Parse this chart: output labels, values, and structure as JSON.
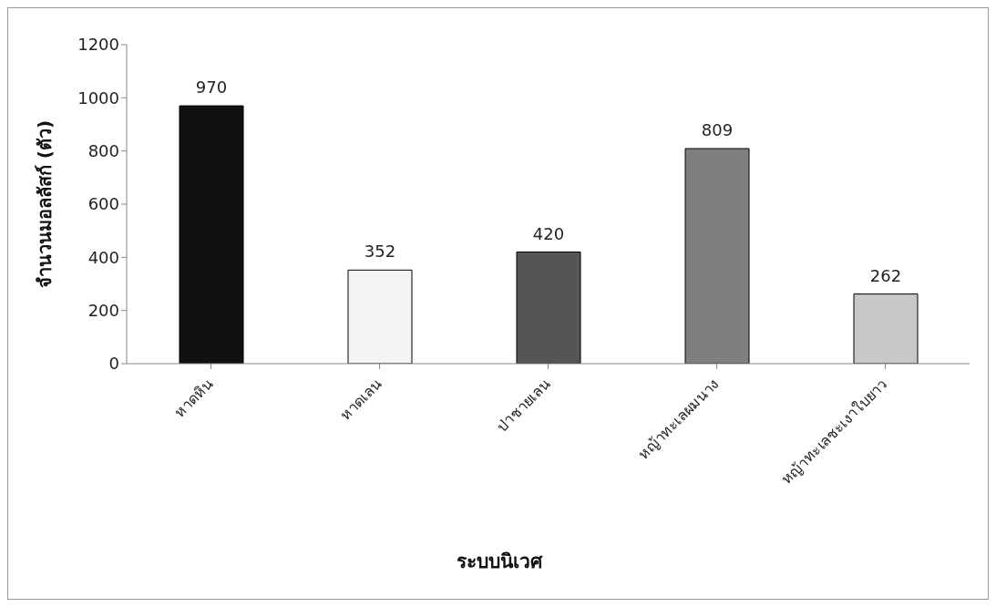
{
  "chart_data": {
    "type": "bar",
    "xlabel": "ระบบนิเวศ",
    "ylabel": "จำนวนมอลลัสก์ (ตัว)",
    "categories": [
      "หาดหิน",
      "หาดเลน",
      "ป่าชายเลน",
      "หญ้าทะเลผมนาง",
      "หญ้าทะเลชะเงาใบยาว"
    ],
    "values": [
      970,
      352,
      420,
      809,
      262
    ],
    "colors": [
      "#111111",
      "#f4f4f4",
      "#555555",
      "#7f7f7f",
      "#c8c8c8"
    ],
    "ylim": [
      0,
      1200
    ],
    "yticks": [
      0,
      200,
      400,
      600,
      800,
      1000,
      1200
    ],
    "grid": false,
    "legend": false,
    "data_labels": true
  }
}
